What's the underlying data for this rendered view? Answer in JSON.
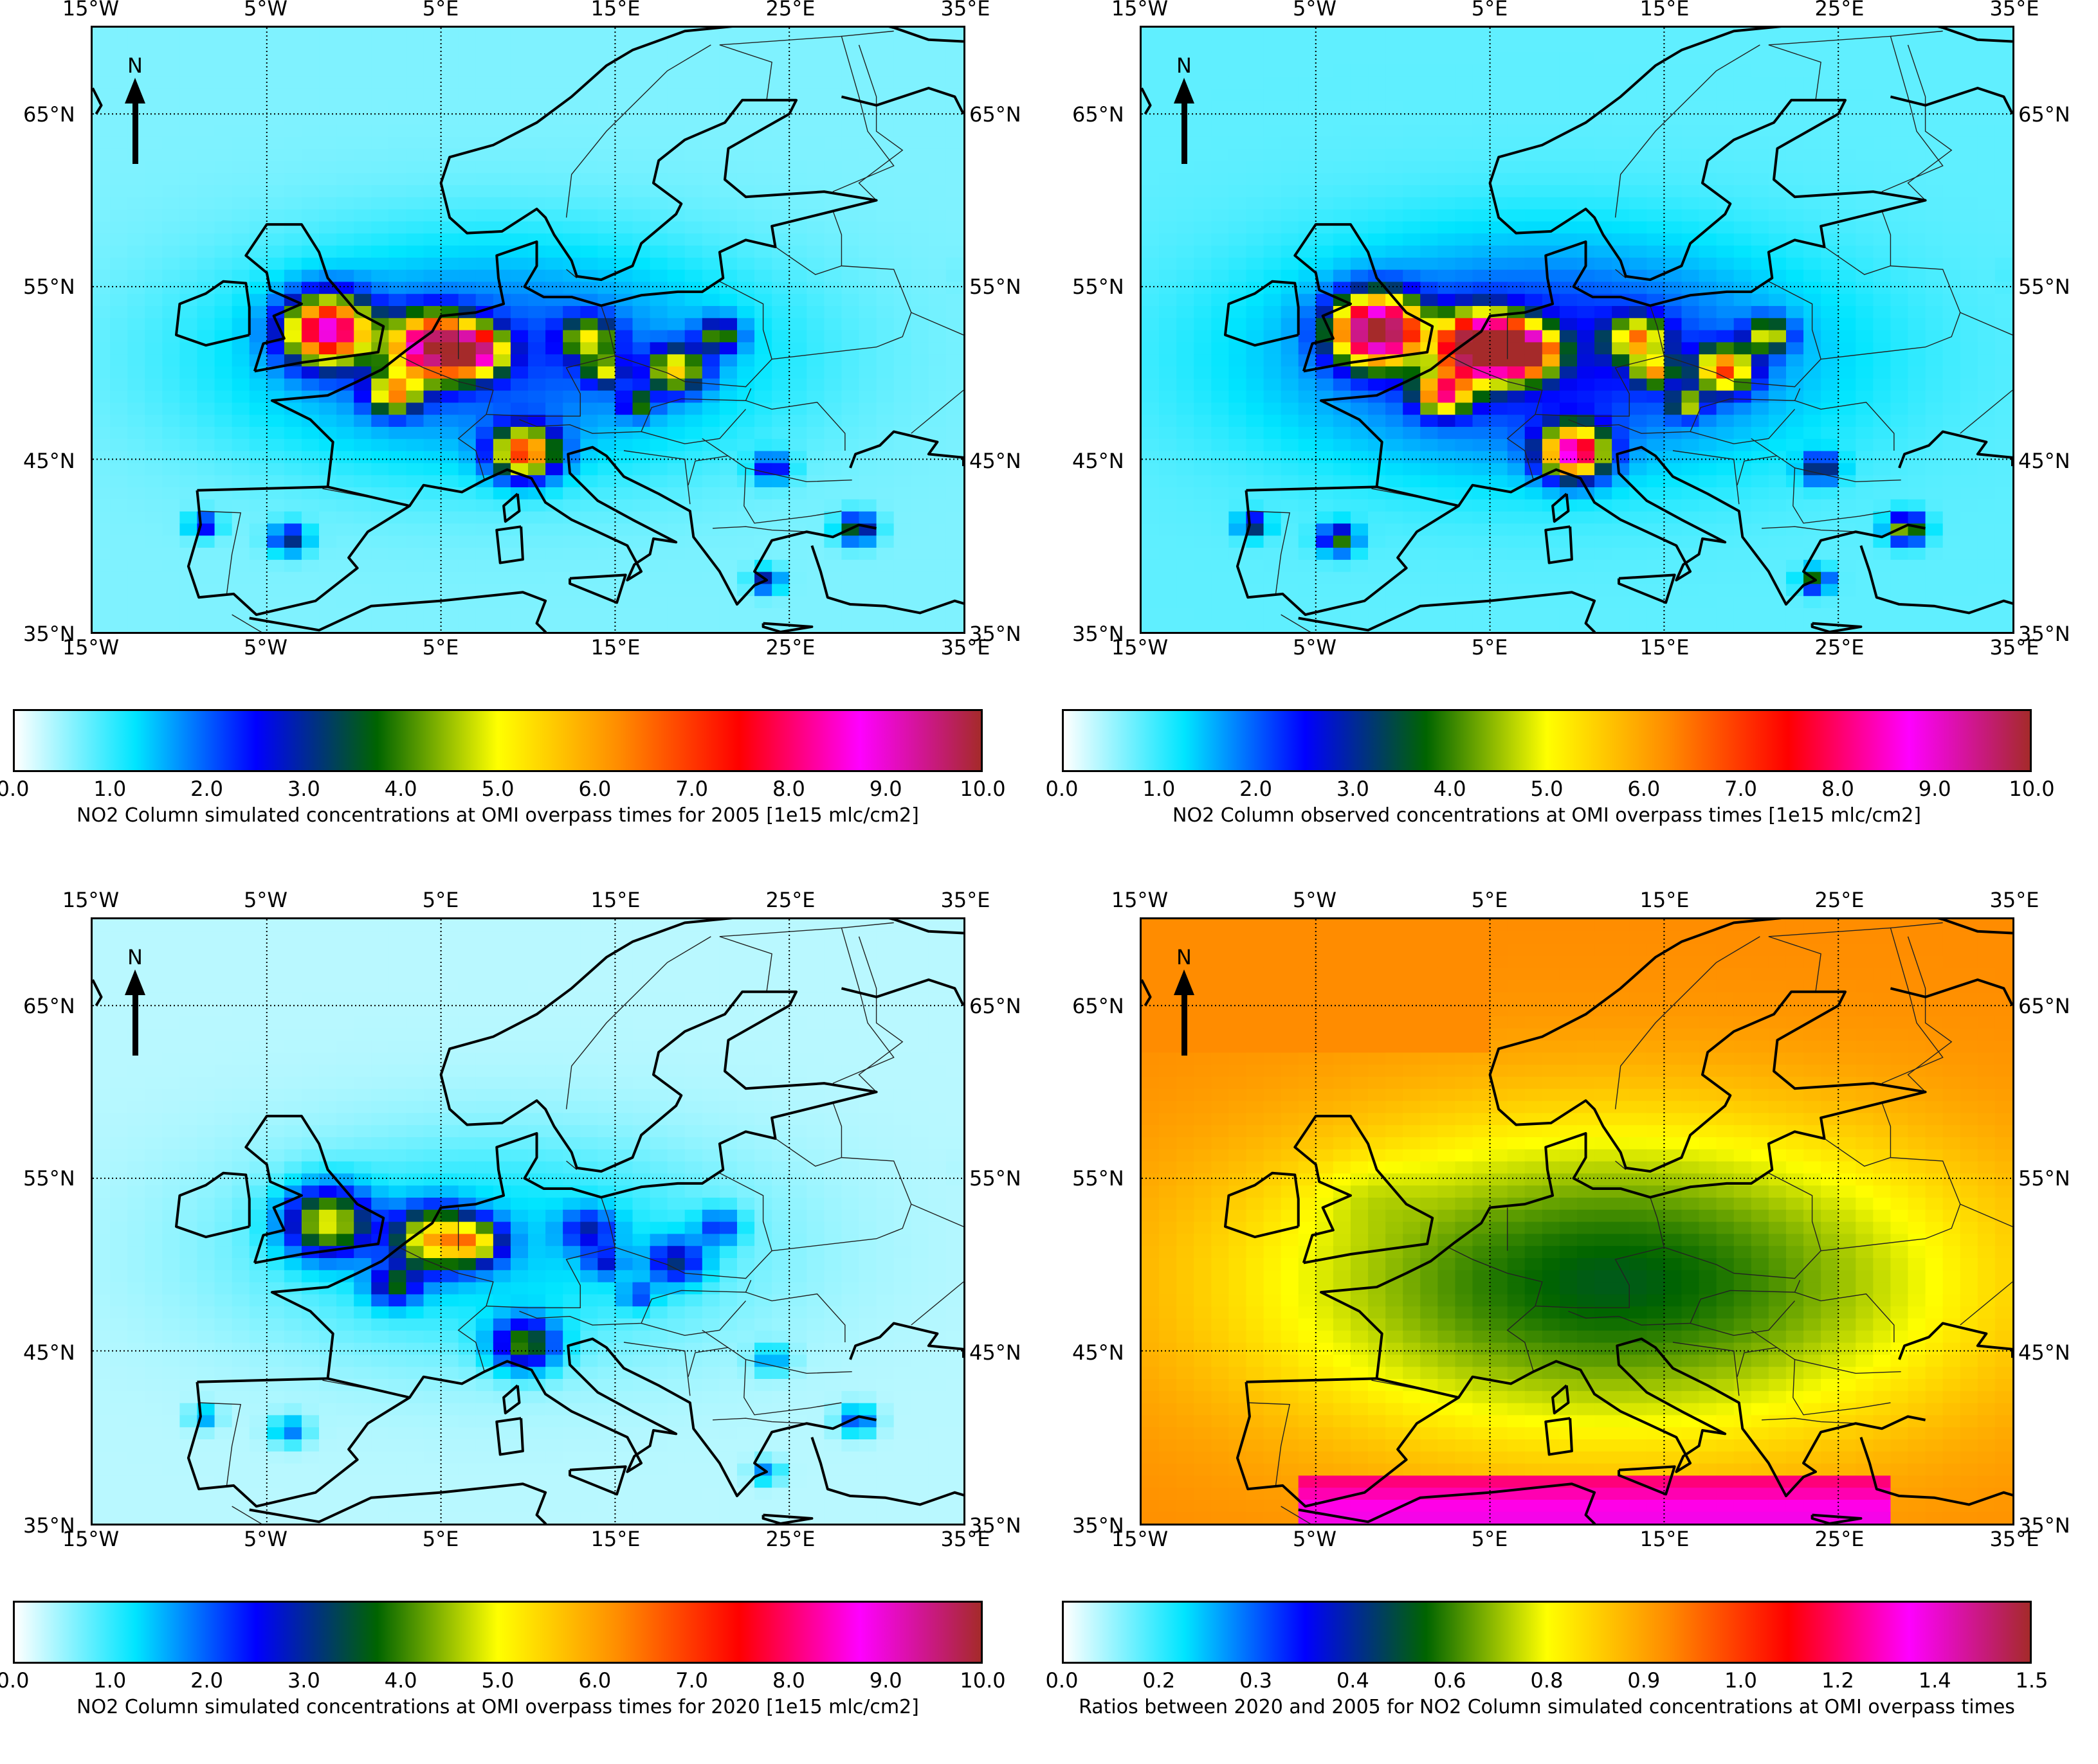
{
  "colors": {
    "concentration_scale": [
      "#ffffff",
      "#00e5ff",
      "#0000ff",
      "#006400",
      "#ffff00",
      "#ff8c00",
      "#ff0000",
      "#ff00ff",
      "#a52a2a"
    ],
    "ratio_scale": [
      "#ffffff",
      "#00e5ff",
      "#0000ff",
      "#006400",
      "#ffff00",
      "#ff8c00",
      "#ff0000",
      "#ff00ff",
      "#a52a2a"
    ]
  },
  "axis_labels": {
    "lon": [
      "15°W",
      "5°W",
      "5°E",
      "15°E",
      "25°E",
      "35°E"
    ],
    "lat": [
      "65°N",
      "55°N",
      "45°N",
      "35°N"
    ]
  },
  "north_arrow_label": "N",
  "panels": [
    {
      "id": "sim2005",
      "colorbar_ticks": [
        "0.0",
        "1.0",
        "2.0",
        "3.0",
        "4.0",
        "5.0",
        "6.0",
        "7.0",
        "8.0",
        "9.0",
        "10.0"
      ],
      "colorbar_label": "NO2 Column simulated concentrations at OMI overpass times for 2005 [1e15 mlc/cm2]",
      "intensity": 1.0,
      "background": "#b5f5ff"
    },
    {
      "id": "obs",
      "colorbar_ticks": [
        "0.0",
        "1.0",
        "2.0",
        "3.0",
        "4.0",
        "5.0",
        "6.0",
        "7.0",
        "8.0",
        "9.0",
        "10.0"
      ],
      "colorbar_label": "NO2 Column observed concentrations at OMI overpass times [1e15 mlc/cm2]",
      "intensity": 1.25,
      "background": "#d8fbff"
    },
    {
      "id": "sim2020",
      "colorbar_ticks": [
        "0.0",
        "1.0",
        "2.0",
        "3.0",
        "4.0",
        "5.0",
        "6.0",
        "7.0",
        "8.0",
        "9.0",
        "10.0"
      ],
      "colorbar_label": "NO2 Column simulated concentrations at OMI overpass times for 2020 [1e15 mlc/cm2]",
      "intensity": 0.55,
      "background": "#c8f8ff"
    },
    {
      "id": "ratio",
      "colorbar_ticks": [
        "0.0",
        "0.2",
        "0.3",
        "0.4",
        "0.6",
        "0.8",
        "0.9",
        "1.0",
        "1.2",
        "1.4",
        "1.5"
      ],
      "colorbar_label": "Ratios between 2020 and 2005 for NO2 Column simulated concentrations at OMI overpass times",
      "intensity": 1.0,
      "background": "#ff9a1a"
    }
  ]
}
